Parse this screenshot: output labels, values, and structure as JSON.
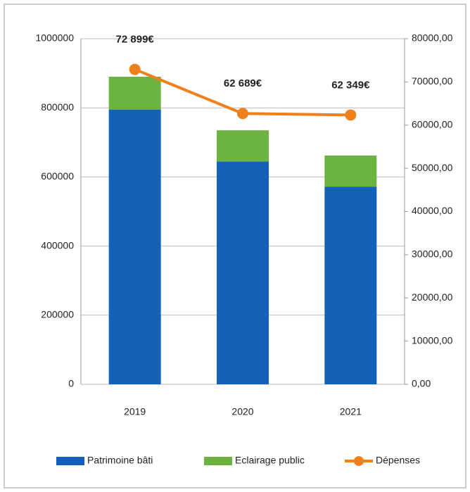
{
  "chart_data": {
    "type": "bar",
    "stacked": true,
    "categories": [
      "2019",
      "2020",
      "2021"
    ],
    "series": [
      {
        "name": "Patrimoine bâti",
        "color": "#1462b8",
        "values": [
          795000,
          645000,
          572000
        ]
      },
      {
        "name": "Eclairage public",
        "color": "#6db33f",
        "values": [
          95000,
          90000,
          90000
        ]
      },
      {
        "name": "Dépenses",
        "color": "#f0801c",
        "type": "line",
        "axis": "y2",
        "values": [
          72899,
          62689,
          62349
        ],
        "value_labels": [
          "72 899€",
          "62 689€",
          "62 349€"
        ]
      }
    ],
    "ylim": [
      0,
      1000000
    ],
    "yticks": [
      0,
      200000,
      400000,
      600000,
      800000,
      1000000
    ],
    "y2lim": [
      0,
      80000
    ],
    "y2ticks": [
      {
        "value": 0,
        "label": "0,00"
      },
      {
        "value": 10000,
        "label": "10000,00"
      },
      {
        "value": 20000,
        "label": "20000,00"
      },
      {
        "value": 30000,
        "label": "30000,00"
      },
      {
        "value": 40000,
        "label": "40000,00"
      },
      {
        "value": 50000,
        "label": "50000,00"
      },
      {
        "value": 60000,
        "label": "60000,00"
      },
      {
        "value": 70000,
        "label": "70000,00"
      },
      {
        "value": 80000,
        "label": "80000,00"
      }
    ],
    "grid": true,
    "legend": "bottom"
  }
}
